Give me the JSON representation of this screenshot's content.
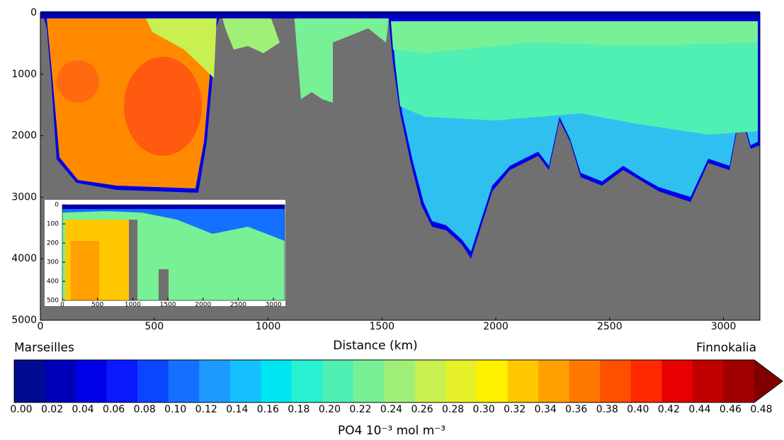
{
  "chart_data": {
    "type": "contour",
    "xlabel": "Distance (km)",
    "left_label": "Marseilles",
    "right_label": "Finnokalia",
    "xlim": [
      0,
      3160
    ],
    "xticks": [
      0,
      500,
      1000,
      1500,
      2000,
      2500,
      3000
    ],
    "ylim": [
      5000,
      0
    ],
    "yticks": [
      0,
      1000,
      2000,
      3000,
      4000,
      5000
    ],
    "land_color": "#707070",
    "inset": {
      "xlim": [
        0,
        3160
      ],
      "xticks": [
        0,
        500,
        1000,
        1500,
        2000,
        2500,
        3000
      ],
      "ylim": [
        500,
        0
      ],
      "yticks": [
        0,
        100,
        200,
        300,
        400,
        500
      ]
    },
    "colorbar": {
      "label": "PO4 10⁻³ mol m⁻³",
      "levels": [
        {
          "value": 0,
          "label": "0.00"
        },
        0.02,
        0.04,
        0.06,
        0.08,
        {
          "value": 0.1,
          "label": "0.10"
        },
        0.12,
        0.14,
        0.16,
        0.18,
        {
          "value": 0.2,
          "label": "0.20"
        },
        0.22,
        0.24,
        0.26,
        0.28,
        {
          "value": 0.3,
          "label": "0.30"
        },
        0.32,
        0.34,
        0.36,
        0.38,
        {
          "value": 0.4,
          "label": "0.40"
        },
        0.42,
        0.44,
        0.46,
        0.48
      ],
      "colors": [
        "#000c8f",
        "#0000b8",
        "#0000e6",
        "#0a1aff",
        "#0a46ff",
        "#1470ff",
        "#1e9aff",
        "#14c0ff",
        "#00e6f0",
        "#28f0d2",
        "#50f0b4",
        "#78f096",
        "#a0f078",
        "#c8f050",
        "#e6f028",
        "#fff000",
        "#ffc800",
        "#ffa000",
        "#ff7800",
        "#ff5000",
        "#ff2800",
        "#e60000",
        "#c00000",
        "#a00000",
        "#800000"
      ]
    }
  }
}
